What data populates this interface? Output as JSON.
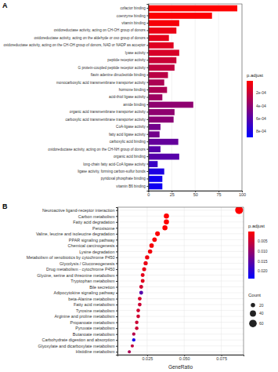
{
  "chart_data": [
    {
      "type": "bar",
      "title": "A",
      "orientation": "horizontal",
      "grid": true,
      "categories": [
        "cofactor binding",
        "coenzyme binding",
        "vitamin binding",
        "oxidoreductase activity, acting on CH-OH group of donors",
        "oxidoreductase activity, acting on the aldehyde or oxo group of donors",
        "oxidoreductase activity, acting on the CH-OH group of donors, NAD or NADP as acceptor",
        "lyase activity",
        "peptide receptor activity",
        "G protein-coupled peptide receptor activity",
        "flavin adenine dinucleotide binding",
        "monocarboxylic acid transmembrane transporter activity",
        "hormone binding",
        "acid-thiol ligase activity",
        "amide binding",
        "organic acid transmembrane transporter activity",
        "carboxylic acid transmembrane transporter activity",
        "CoA-ligase activity",
        "fatty acid ligase activity",
        "carboxylic acid binding",
        "oxidoreductase activity, acting on the CH-NH group of donors",
        "organic acid binding",
        "long-chain fatty acid-CoA ligase activity",
        "ligase activity, forming carbon-sulfur bonds",
        "pyridoxal phosphate binding",
        "vitamin B6 binding"
      ],
      "values": [
        95,
        68,
        33,
        30,
        22,
        27,
        33,
        30,
        28,
        21,
        17,
        20,
        15,
        48,
        28,
        27,
        13,
        12,
        32,
        13,
        33,
        10,
        17,
        15,
        15
      ],
      "p_adjust": [
        1e-05,
        2e-05,
        4e-05,
        8e-05,
        0.0001,
        0.00012,
        0.00015,
        0.0002,
        0.00023,
        0.00025,
        0.0003,
        0.0003,
        0.00035,
        0.0004,
        0.0004,
        0.00042,
        0.0005,
        0.0005,
        0.00055,
        0.0006,
        0.0006,
        0.0007,
        0.0008,
        0.00085,
        0.00085
      ],
      "xlim": [
        0,
        100
      ],
      "xticks": [
        0,
        25,
        50,
        75,
        100
      ],
      "color_title": "p.adjust",
      "color_lim": [
        1e-05,
        0.0009
      ],
      "color_ticks": [
        {
          "value": 0.0002,
          "label": "2e-04"
        },
        {
          "value": 0.0004,
          "label": "4e-04"
        },
        {
          "value": 0.0006,
          "label": "6e-04"
        },
        {
          "value": 0.0008,
          "label": "8e-04"
        }
      ]
    },
    {
      "type": "scatter",
      "title": "B",
      "orientation": "horizontal",
      "grid": true,
      "x_label": "GeneRatio",
      "categories": [
        "Neuroactive ligand-receptor interaction",
        "Carbon metabolism",
        "Fatty acid degradation",
        "Peroxisome",
        "Valine, leucine and isoleucine degradation",
        "PPAR signaling pathway",
        "Chemical carcinogenesis",
        "Lysine degradation",
        "Metabolism of xenobiotics by cytochrome P450",
        "Glycolysis / Gluconeogenesis",
        "Drug metabolism - cytochrome P450",
        "Glycine, serine and threonine metabolism",
        "Tryptophan metabolism",
        "Bile secretion",
        "Adipocytokine signaling pathway",
        "beta-Alanine metabolism",
        "Fatty acid metabolism",
        "Tyrosine metabolism",
        "Arginine and proline metabolism",
        "Propanoate metabolism",
        "Pyruvate metabolism",
        "Butanoate metabolism",
        "Carbohydrate digestion and absorption",
        "Glyoxylate and dicarboxylate metabolism",
        "Histidine metabolism"
      ],
      "values": [
        0.087,
        0.038,
        0.038,
        0.037,
        0.032,
        0.03,
        0.028,
        0.027,
        0.025,
        0.024,
        0.023,
        0.022,
        0.022,
        0.021,
        0.021,
        0.02,
        0.02,
        0.019,
        0.019,
        0.018,
        0.018,
        0.016,
        0.016,
        0.015,
        0.013
      ],
      "count": [
        65,
        28,
        28,
        27,
        24,
        22,
        21,
        20,
        19,
        18,
        17,
        16,
        16,
        16,
        16,
        15,
        15,
        14,
        14,
        13,
        13,
        12,
        12,
        11,
        10
      ],
      "p_adjust": [
        0.0001,
        0.0002,
        0.0002,
        0.0003,
        0.0004,
        0.0008,
        0.001,
        0.0012,
        0.0015,
        0.002,
        0.0022,
        0.0025,
        0.0028,
        0.0045,
        0.016,
        0.004,
        0.005,
        0.0045,
        0.0045,
        0.005,
        0.005,
        0.007,
        0.022,
        0.006,
        0.008
      ],
      "xlim": [
        0.005,
        0.09
      ],
      "xticks": [
        0.025,
        {
          "value": 0.05,
          "label": "0.050"
        },
        0.075
      ],
      "color_title": "p.adjust",
      "color_lim": [
        0.0001,
        0.024
      ],
      "color_ticks": [
        0.005,
        {
          "value": 0.01,
          "label": "0.010"
        },
        0.015,
        {
          "value": 0.02,
          "label": "0.020"
        }
      ],
      "size_title": "Count",
      "size_ticks": [
        20,
        40,
        60
      ]
    }
  ]
}
